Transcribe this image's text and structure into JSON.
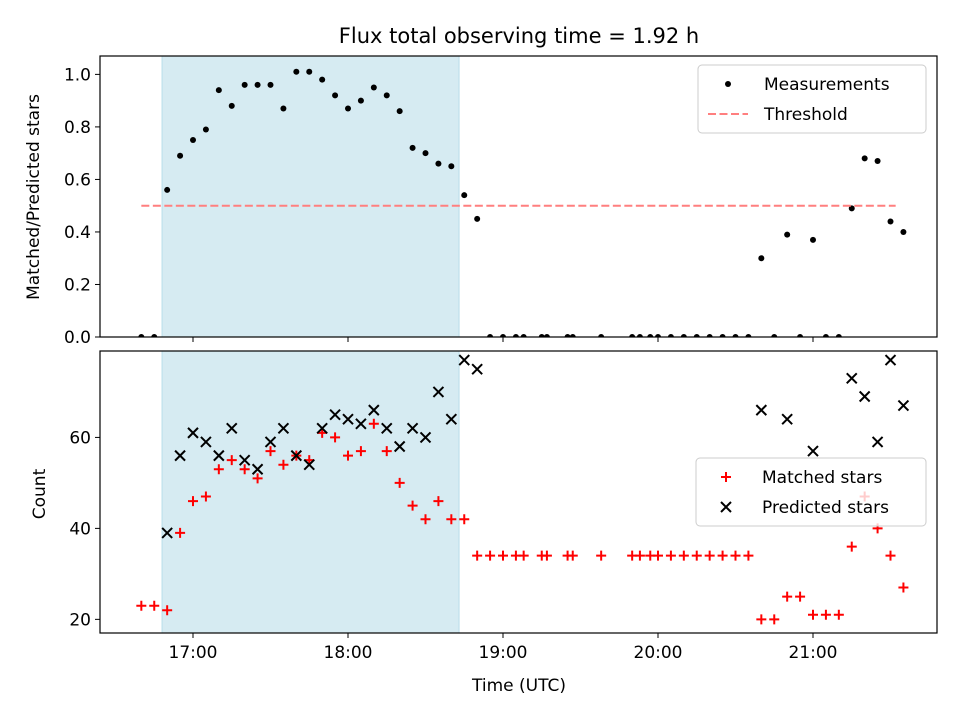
{
  "chart_data": [
    {
      "type": "scatter",
      "title": "Flux total observing time = 1.92 h",
      "ylabel": "Matched/Predicted stars",
      "xlabel": "",
      "xlim": [
        "16:24",
        "21:48"
      ],
      "ylim": [
        0,
        1.07
      ],
      "yticks": [
        "0.0",
        "0.2",
        "0.4",
        "0.6",
        "0.8",
        "1.0"
      ],
      "legend_position": "top-right",
      "shaded_interval": {
        "start": "16:48",
        "end": "18:43",
        "color": "#add8e6"
      },
      "series": [
        {
          "name": "Measurements",
          "marker": "dot",
          "color": "#000000",
          "points": [
            [
              "16:40",
              0.0
            ],
            [
              "16:45",
              0.0
            ],
            [
              "16:50",
              0.56
            ],
            [
              "16:55",
              0.69
            ],
            [
              "17:00",
              0.75
            ],
            [
              "17:05",
              0.79
            ],
            [
              "17:10",
              0.94
            ],
            [
              "17:15",
              0.88
            ],
            [
              "17:20",
              0.96
            ],
            [
              "17:25",
              0.96
            ],
            [
              "17:30",
              0.96
            ],
            [
              "17:35",
              0.87
            ],
            [
              "17:40",
              1.01
            ],
            [
              "17:45",
              1.01
            ],
            [
              "17:50",
              0.98
            ],
            [
              "17:55",
              0.92
            ],
            [
              "18:00",
              0.87
            ],
            [
              "18:05",
              0.9
            ],
            [
              "18:10",
              0.95
            ],
            [
              "18:15",
              0.92
            ],
            [
              "18:20",
              0.86
            ],
            [
              "18:25",
              0.72
            ],
            [
              "18:30",
              0.7
            ],
            [
              "18:35",
              0.66
            ],
            [
              "18:40",
              0.65
            ],
            [
              "18:45",
              0.54
            ],
            [
              "18:50",
              0.45
            ],
            [
              "18:55",
              0.0
            ],
            [
              "19:00",
              0.0
            ],
            [
              "19:05",
              0.0
            ],
            [
              "19:08",
              0.0
            ],
            [
              "19:15",
              0.0
            ],
            [
              "19:17",
              0.0
            ],
            [
              "19:25",
              0.0
            ],
            [
              "19:27",
              0.0
            ],
            [
              "19:38",
              0.0
            ],
            [
              "19:50",
              0.0
            ],
            [
              "19:53",
              0.0
            ],
            [
              "19:57",
              0.0
            ],
            [
              "20:00",
              0.0
            ],
            [
              "20:05",
              0.0
            ],
            [
              "20:10",
              0.0
            ],
            [
              "20:15",
              0.0
            ],
            [
              "20:20",
              0.0
            ],
            [
              "20:25",
              0.0
            ],
            [
              "20:30",
              0.0
            ],
            [
              "20:35",
              0.0
            ],
            [
              "20:40",
              0.3
            ],
            [
              "20:45",
              0.0
            ],
            [
              "20:50",
              0.39
            ],
            [
              "20:55",
              0.0
            ],
            [
              "21:00",
              0.37
            ],
            [
              "21:05",
              0.0
            ],
            [
              "21:10",
              0.0
            ],
            [
              "21:15",
              0.49
            ],
            [
              "21:20",
              0.68
            ],
            [
              "21:25",
              0.67
            ],
            [
              "21:30",
              0.44
            ],
            [
              "21:35",
              0.4
            ]
          ]
        },
        {
          "name": "Threshold",
          "line": "dashed",
          "color": "#ff7f7f",
          "from": [
            "16:40",
            0.5
          ],
          "to": [
            "21:32",
            0.5
          ]
        }
      ]
    },
    {
      "type": "scatter",
      "title": "",
      "ylabel": "Count",
      "xlabel": "Time (UTC)",
      "xlim": [
        "16:24",
        "21:48"
      ],
      "ylim": [
        17,
        79
      ],
      "yticks": [
        "20",
        "40",
        "60"
      ],
      "xticks": [
        "17:00",
        "18:00",
        "19:00",
        "20:00",
        "21:00"
      ],
      "legend_position": "center-right",
      "shaded_interval": {
        "start": "16:48",
        "end": "18:43",
        "color": "#add8e6"
      },
      "series": [
        {
          "name": "Matched stars",
          "marker": "plus",
          "color": "#ff0000",
          "points": [
            [
              "16:40",
              23
            ],
            [
              "16:45",
              23
            ],
            [
              "16:50",
              22
            ],
            [
              "16:55",
              39
            ],
            [
              "17:00",
              46
            ],
            [
              "17:05",
              47
            ],
            [
              "17:10",
              53
            ],
            [
              "17:15",
              55
            ],
            [
              "17:20",
              53
            ],
            [
              "17:25",
              51
            ],
            [
              "17:30",
              57
            ],
            [
              "17:35",
              54
            ],
            [
              "17:40",
              56
            ],
            [
              "17:45",
              55
            ],
            [
              "17:50",
              61
            ],
            [
              "17:55",
              60
            ],
            [
              "18:00",
              56
            ],
            [
              "18:05",
              57
            ],
            [
              "18:10",
              63
            ],
            [
              "18:15",
              57
            ],
            [
              "18:20",
              50
            ],
            [
              "18:25",
              45
            ],
            [
              "18:30",
              42
            ],
            [
              "18:35",
              46
            ],
            [
              "18:40",
              42
            ],
            [
              "18:45",
              42
            ],
            [
              "18:50",
              34
            ],
            [
              "18:55",
              34
            ],
            [
              "19:00",
              34
            ],
            [
              "19:05",
              34
            ],
            [
              "19:08",
              34
            ],
            [
              "19:15",
              34
            ],
            [
              "19:17",
              34
            ],
            [
              "19:25",
              34
            ],
            [
              "19:27",
              34
            ],
            [
              "19:38",
              34
            ],
            [
              "19:50",
              34
            ],
            [
              "19:53",
              34
            ],
            [
              "19:57",
              34
            ],
            [
              "20:00",
              34
            ],
            [
              "20:05",
              34
            ],
            [
              "20:10",
              34
            ],
            [
              "20:15",
              34
            ],
            [
              "20:20",
              34
            ],
            [
              "20:25",
              34
            ],
            [
              "20:30",
              34
            ],
            [
              "20:35",
              34
            ],
            [
              "20:40",
              20
            ],
            [
              "20:45",
              20
            ],
            [
              "20:50",
              25
            ],
            [
              "20:55",
              25
            ],
            [
              "21:00",
              21
            ],
            [
              "21:05",
              21
            ],
            [
              "21:10",
              21
            ],
            [
              "21:15",
              36
            ],
            [
              "21:20",
              47
            ],
            [
              "21:25",
              40
            ],
            [
              "21:30",
              34
            ],
            [
              "21:35",
              27
            ]
          ]
        },
        {
          "name": "Predicted stars",
          "marker": "x",
          "color": "#000000",
          "points": [
            [
              "16:50",
              39
            ],
            [
              "16:55",
              56
            ],
            [
              "17:00",
              61
            ],
            [
              "17:05",
              59
            ],
            [
              "17:10",
              56
            ],
            [
              "17:15",
              62
            ],
            [
              "17:20",
              55
            ],
            [
              "17:25",
              53
            ],
            [
              "17:30",
              59
            ],
            [
              "17:35",
              62
            ],
            [
              "17:40",
              56
            ],
            [
              "17:45",
              54
            ],
            [
              "17:50",
              62
            ],
            [
              "17:55",
              65
            ],
            [
              "18:00",
              64
            ],
            [
              "18:05",
              63
            ],
            [
              "18:10",
              66
            ],
            [
              "18:15",
              62
            ],
            [
              "18:20",
              58
            ],
            [
              "18:25",
              62
            ],
            [
              "18:30",
              60
            ],
            [
              "18:35",
              70
            ],
            [
              "18:40",
              64
            ],
            [
              "18:45",
              77
            ],
            [
              "18:50",
              75
            ],
            [
              "20:40",
              66
            ],
            [
              "20:50",
              64
            ],
            [
              "21:00",
              57
            ],
            [
              "21:15",
              73
            ],
            [
              "21:20",
              69
            ],
            [
              "21:25",
              59
            ],
            [
              "21:30",
              77
            ],
            [
              "21:35",
              67
            ]
          ]
        }
      ]
    }
  ]
}
